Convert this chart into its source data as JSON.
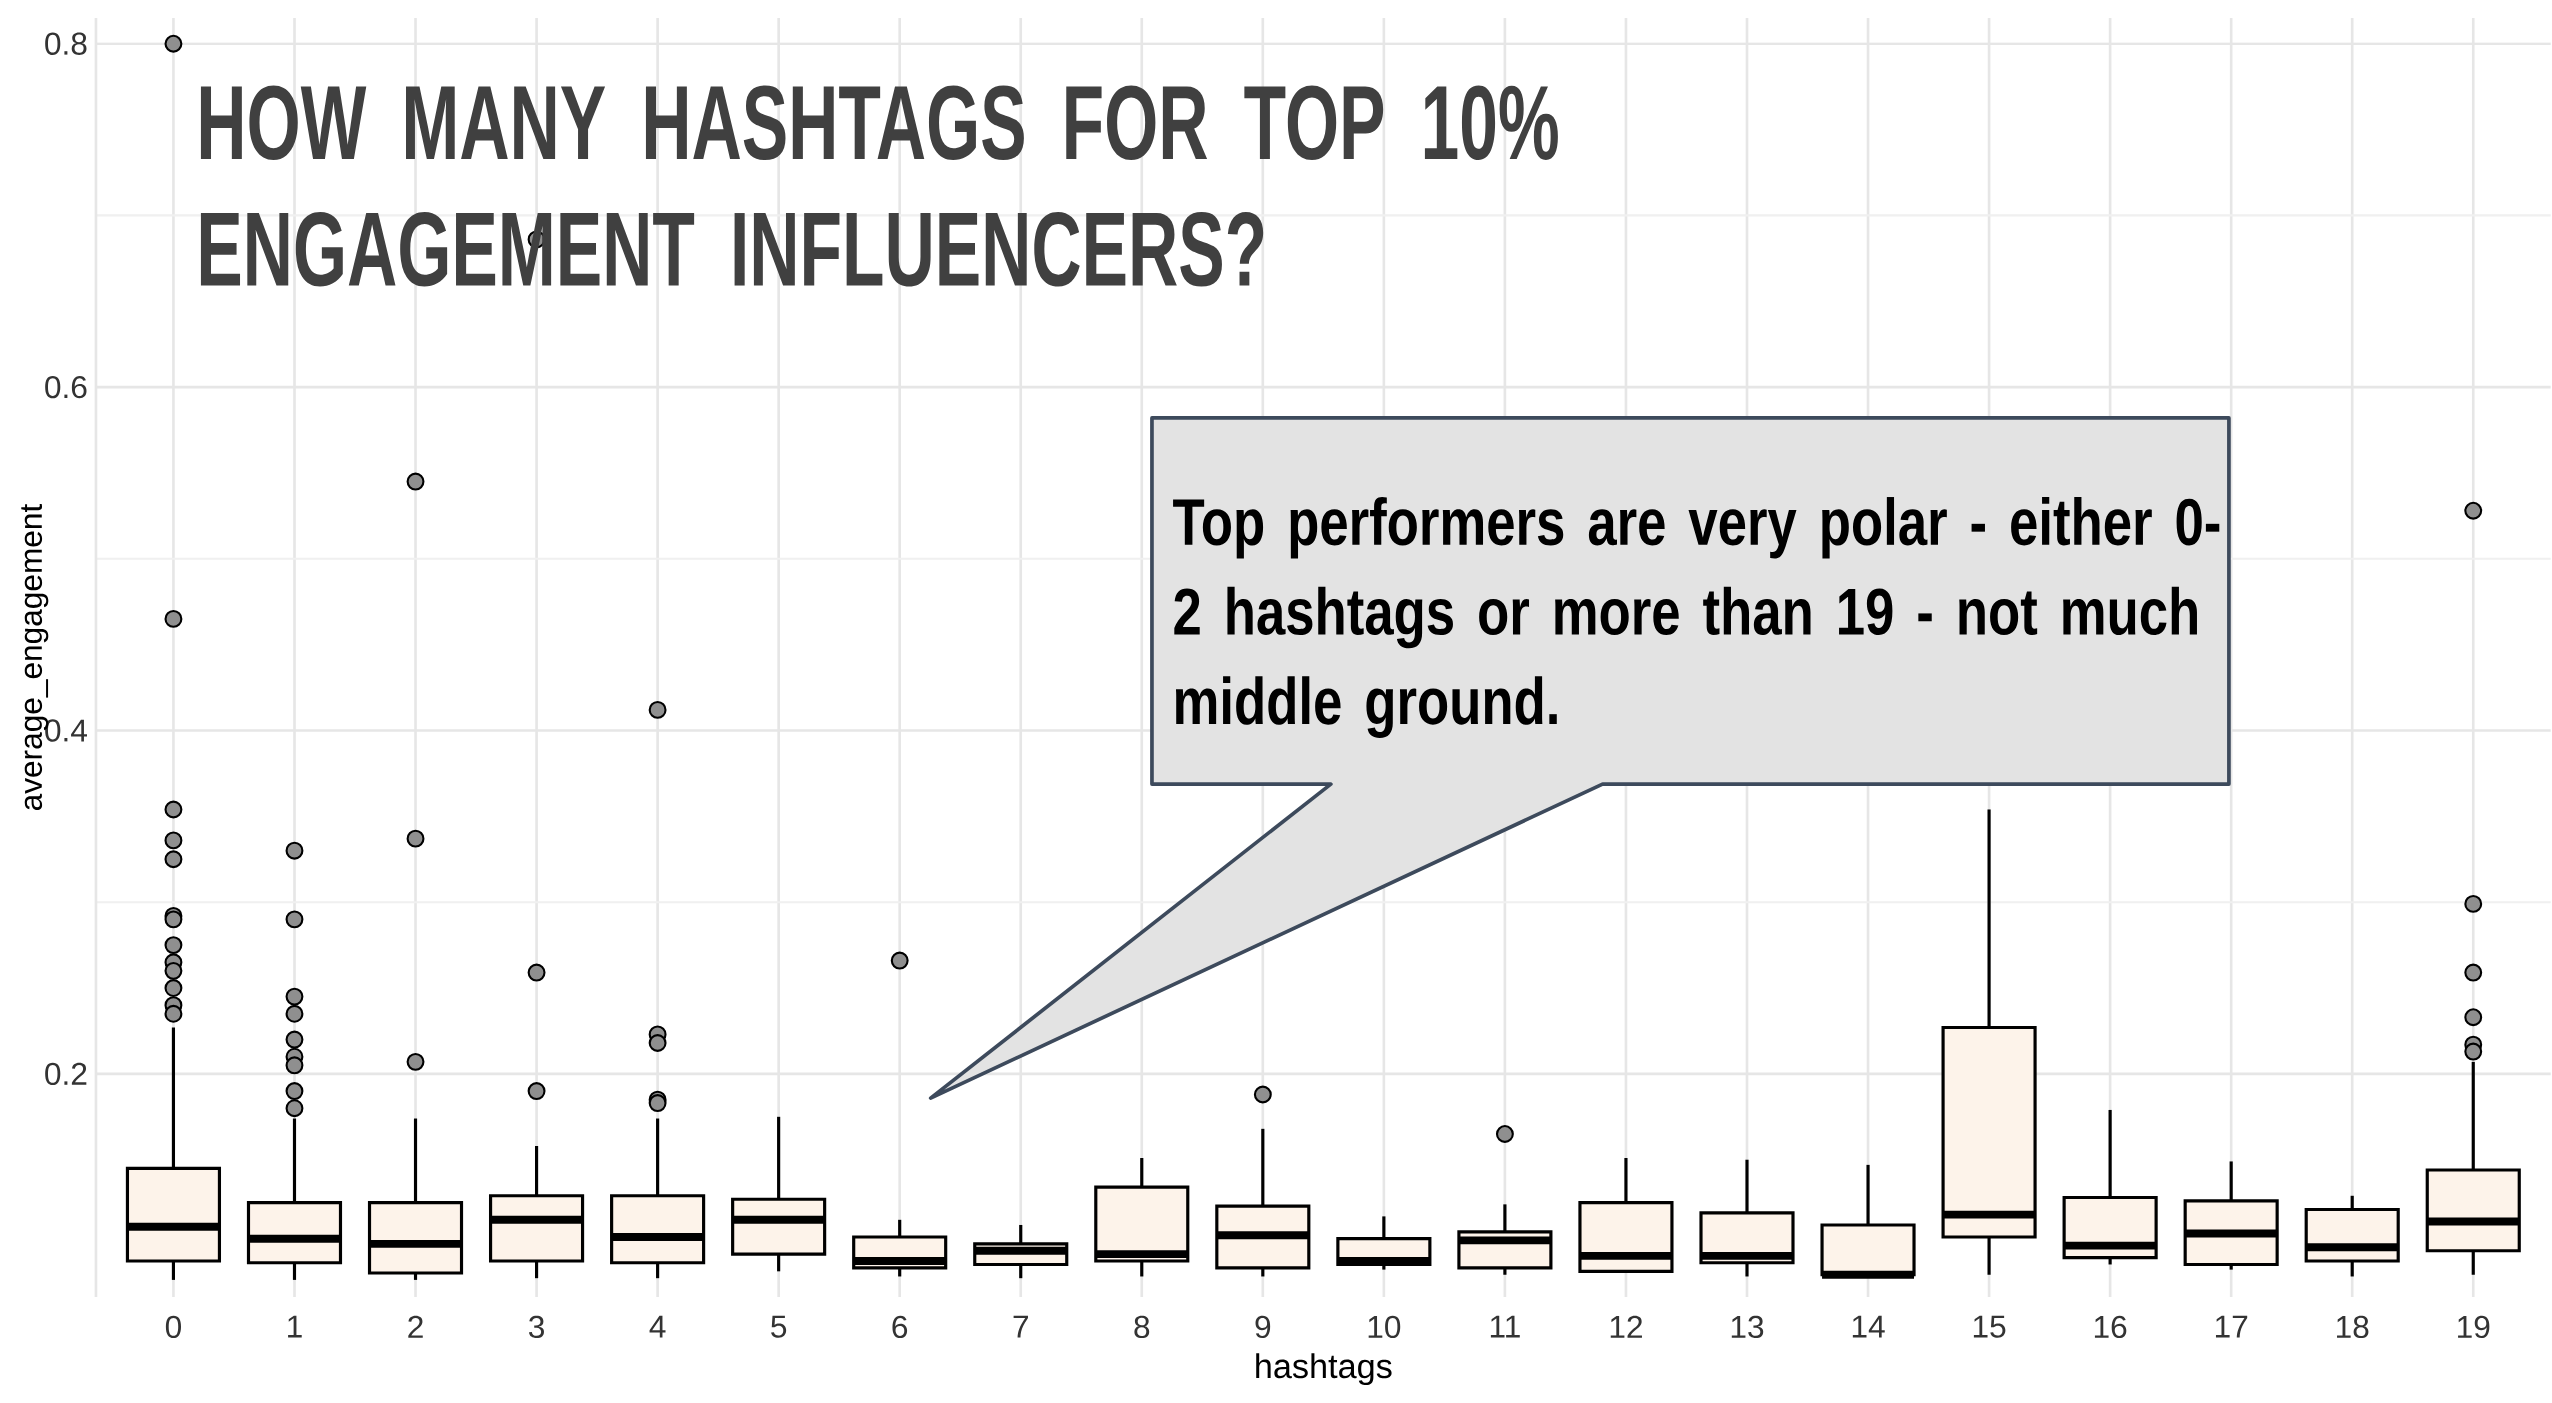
{
  "chart_data": {
    "type": "box",
    "title": "HOW MANY HASHTAGS FOR TOP 10% ENGAGEMENT INFLUENCERS?",
    "xlabel": "hashtags",
    "ylabel": "average_engagement",
    "annotations": [
      "Top performers are very polar - either 0-2 hashtags or more than 19 - not much middle ground."
    ],
    "categories": [
      "0",
      "1",
      "2",
      "3",
      "4",
      "5",
      "6",
      "7",
      "8",
      "9",
      "10",
      "11",
      "12",
      "13",
      "14",
      "15",
      "16",
      "17",
      "18",
      "19"
    ],
    "color": "#fdf3ea",
    "boxes": [
      {
        "low": 0.08,
        "q1": 0.091,
        "median": 0.111,
        "q3": 0.145,
        "high": 0.227,
        "outliers": [
          0.8,
          0.465,
          0.354,
          0.336,
          0.325,
          0.292,
          0.29,
          0.275,
          0.265,
          0.26,
          0.25,
          0.24,
          0.235
        ]
      },
      {
        "low": 0.08,
        "q1": 0.09,
        "median": 0.104,
        "q3": 0.125,
        "high": 0.174,
        "outliers": [
          0.33,
          0.29,
          0.245,
          0.235,
          0.22,
          0.21,
          0.205,
          0.19,
          0.18
        ]
      },
      {
        "low": 0.08,
        "q1": 0.084,
        "median": 0.101,
        "q3": 0.125,
        "high": 0.174,
        "outliers": [
          0.545,
          0.337,
          0.207
        ]
      },
      {
        "low": 0.081,
        "q1": 0.091,
        "median": 0.115,
        "q3": 0.129,
        "high": 0.158,
        "outliers": [
          0.686,
          0.259,
          0.19
        ]
      },
      {
        "low": 0.081,
        "q1": 0.09,
        "median": 0.105,
        "q3": 0.129,
        "high": 0.174,
        "outliers": [
          0.412,
          0.223,
          0.218,
          0.185,
          0.183
        ]
      },
      {
        "low": 0.085,
        "q1": 0.095,
        "median": 0.115,
        "q3": 0.127,
        "high": 0.175
      },
      {
        "low": 0.082,
        "q1": 0.087,
        "median": 0.091,
        "q3": 0.105,
        "high": 0.115,
        "outliers": [
          0.266
        ]
      },
      {
        "low": 0.081,
        "q1": 0.089,
        "median": 0.097,
        "q3": 0.101,
        "high": 0.112
      },
      {
        "low": 0.082,
        "q1": 0.091,
        "median": 0.095,
        "q3": 0.134,
        "high": 0.151
      },
      {
        "low": 0.082,
        "q1": 0.087,
        "median": 0.106,
        "q3": 0.123,
        "high": 0.168,
        "outliers": [
          0.188
        ]
      },
      {
        "low": 0.086,
        "q1": 0.089,
        "median": 0.091,
        "q3": 0.104,
        "high": 0.117
      },
      {
        "low": 0.083,
        "q1": 0.087,
        "median": 0.103,
        "q3": 0.108,
        "high": 0.124,
        "outliers": [
          0.165
        ]
      },
      {
        "low": 0.085,
        "q1": 0.085,
        "median": 0.094,
        "q3": 0.125,
        "high": 0.151
      },
      {
        "low": 0.082,
        "q1": 0.09,
        "median": 0.094,
        "q3": 0.119,
        "high": 0.15
      },
      {
        "low": 0.083,
        "q1": 0.083,
        "median": 0.083,
        "q3": 0.112,
        "high": 0.147
      },
      {
        "low": 0.083,
        "q1": 0.105,
        "median": 0.118,
        "q3": 0.227,
        "high": 0.354
      },
      {
        "low": 0.089,
        "q1": 0.093,
        "median": 0.1,
        "q3": 0.128,
        "high": 0.179
      },
      {
        "low": 0.086,
        "q1": 0.089,
        "median": 0.107,
        "q3": 0.126,
        "high": 0.149
      },
      {
        "low": 0.082,
        "q1": 0.091,
        "median": 0.099,
        "q3": 0.121,
        "high": 0.129
      },
      {
        "low": 0.083,
        "q1": 0.097,
        "median": 0.114,
        "q3": 0.144,
        "high": 0.207,
        "outliers": [
          0.528,
          0.299,
          0.259,
          0.233,
          0.217,
          0.213
        ]
      }
    ],
    "ylim": [
      0.07,
      0.815
    ],
    "yticks": [
      0.2,
      0.4,
      0.6,
      0.8
    ],
    "grid": true
  }
}
